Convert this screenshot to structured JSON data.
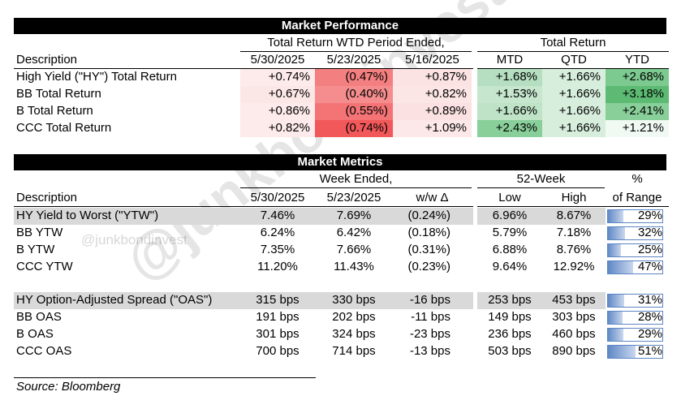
{
  "watermark": {
    "big": "@junkbondinvest",
    "small": "@junkbondinvest"
  },
  "market_performance": {
    "title": "Market Performance",
    "group_wtd": "Total Return WTD Period Ended,",
    "group_tr": "Total Return",
    "headers": [
      "Description",
      "5/30/2025",
      "5/23/2025",
      "5/16/2025",
      "MTD",
      "QTD",
      "YTD"
    ],
    "rows": [
      {
        "desc": "High Yield (\"HY\") Total Return",
        "v": [
          "+0.74%",
          "(0.47%)",
          "+0.87%",
          "+1.68%",
          "+1.66%",
          "+2.68%"
        ]
      },
      {
        "desc": "BB Total Return",
        "v": [
          "+0.67%",
          "(0.40%)",
          "+0.82%",
          "+1.53%",
          "+1.66%",
          "+3.18%"
        ]
      },
      {
        "desc": "B Total Return",
        "v": [
          "+0.86%",
          "(0.55%)",
          "+0.89%",
          "+1.66%",
          "+1.66%",
          "+2.41%"
        ]
      },
      {
        "desc": "CCC Total Return",
        "v": [
          "+0.82%",
          "(0.74%)",
          "+1.09%",
          "+2.43%",
          "+1.66%",
          "+1.21%"
        ]
      }
    ],
    "cell_colors": [
      [
        "#fdeaea",
        "#f47f80",
        "#fbe3e3",
        "#b5dfc0",
        "#d7eedd",
        "#7cca8f"
      ],
      [
        "#fce7e7",
        "#f58d8e",
        "#fbe5e5",
        "#c6e6ce",
        "#d7eedd",
        "#5cba73"
      ],
      [
        "#fdeaea",
        "#f47476",
        "#fbe1e1",
        "#bee3c7",
        "#d7eedd",
        "#88cf99"
      ],
      [
        "#fdeaea",
        "#f1585a",
        "#fce8e8",
        "#88cf99",
        "#d7eedd",
        "#f1f9f3"
      ]
    ]
  },
  "market_metrics": {
    "title": "Market Metrics",
    "group_week": "Week Ended,",
    "group_52": "52-Week",
    "pct_header_top": "%",
    "headers": [
      "Description",
      "5/30/2025",
      "5/23/2025",
      "w/w Δ",
      "Low",
      "High",
      "of Range"
    ],
    "rows": [
      {
        "desc": "HY Yield to Worst (\"YTW\")",
        "v": [
          "7.46%",
          "7.69%",
          "(0.24%)",
          "6.96%",
          "8.67%",
          "29%"
        ],
        "range": 0.29,
        "shaded": true
      },
      {
        "desc": "BB YTW",
        "v": [
          "6.24%",
          "6.42%",
          "(0.18%)",
          "5.79%",
          "7.18%",
          "32%"
        ],
        "range": 0.32,
        "shaded": false
      },
      {
        "desc": "B YTW",
        "v": [
          "7.35%",
          "7.66%",
          "(0.31%)",
          "6.88%",
          "8.76%",
          "25%"
        ],
        "range": 0.25,
        "shaded": false
      },
      {
        "desc": "CCC YTW",
        "v": [
          "11.20%",
          "11.43%",
          "(0.23%)",
          "9.64%",
          "12.92%",
          "47%"
        ],
        "range": 0.47,
        "shaded": false
      },
      {
        "desc": "HY Option-Adjusted Spread (\"OAS\")",
        "v": [
          "315 bps",
          "330 bps",
          "-16 bps",
          "253 bps",
          "453 bps",
          "31%"
        ],
        "range": 0.31,
        "shaded": true
      },
      {
        "desc": "BB OAS",
        "v": [
          "191 bps",
          "202 bps",
          "-11 bps",
          "149 bps",
          "303 bps",
          "28%"
        ],
        "range": 0.28,
        "shaded": false
      },
      {
        "desc": "B OAS",
        "v": [
          "301 bps",
          "324 bps",
          "-23 bps",
          "236 bps",
          "460 bps",
          "29%"
        ],
        "range": 0.29,
        "shaded": false
      },
      {
        "desc": "CCC OAS",
        "v": [
          "700 bps",
          "714 bps",
          "-13 bps",
          "503 bps",
          "890 bps",
          "51%"
        ],
        "range": 0.51,
        "shaded": false
      }
    ]
  },
  "source": "Source: Bloomberg"
}
